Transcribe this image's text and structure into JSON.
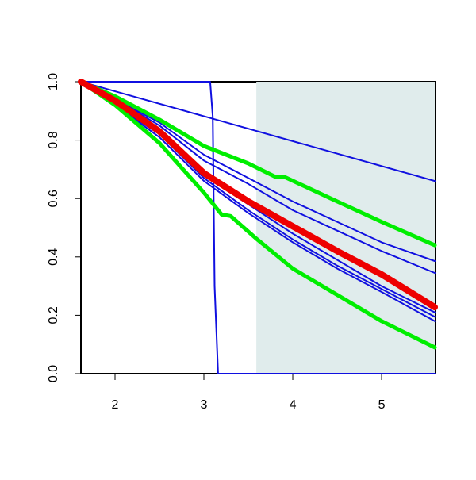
{
  "chart_data": {
    "type": "line",
    "xlim": [
      1.616,
      5.598
    ],
    "ylim": [
      0,
      1
    ],
    "xticks": [
      2,
      3,
      4,
      5
    ],
    "yticks": [
      {
        "value": 0,
        "label": "0.0"
      },
      0.2,
      0.4,
      0.6,
      0.8,
      {
        "value": 1,
        "label": "1.0"
      }
    ],
    "shaded_region": {
      "x": [
        3.59,
        5.598
      ],
      "color": "#e0ecec"
    },
    "series": [
      {
        "color": "#1010e0",
        "linewidth": 2,
        "x": [
          1.616,
          5.598
        ],
        "values": [
          1.0,
          0.66
        ]
      },
      {
        "color": "#1010e0",
        "linewidth": 2,
        "x": [
          1.616,
          3.07,
          3.1,
          3.12,
          3.16,
          5.598
        ],
        "values": [
          1.0,
          1.0,
          0.88,
          0.3,
          0,
          0
        ]
      },
      {
        "color": "#1010e0",
        "linewidth": 2,
        "x": [
          1.616,
          2,
          2.5,
          3,
          3.5,
          4,
          4.5,
          5,
          5.598
        ],
        "values": [
          1.0,
          0.94,
          0.86,
          0.75,
          0.67,
          0.59,
          0.52,
          0.45,
          0.386
        ]
      },
      {
        "color": "#1010e0",
        "linewidth": 2,
        "x": [
          1.616,
          2,
          2.5,
          3,
          3.5,
          4,
          4.5,
          5,
          5.598
        ],
        "values": [
          1.0,
          0.94,
          0.85,
          0.73,
          0.65,
          0.56,
          0.49,
          0.42,
          0.345
        ]
      },
      {
        "color": "#1010e0",
        "linewidth": 2,
        "x": [
          1.616,
          2,
          2.5,
          3,
          3.5,
          4,
          4.5,
          5,
          5.598
        ],
        "values": [
          1.0,
          0.93,
          0.83,
          0.68,
          0.58,
          0.48,
          0.39,
          0.3,
          0.21
        ]
      },
      {
        "color": "#1010e0",
        "linewidth": 2,
        "x": [
          1.616,
          2,
          2.5,
          3,
          3.5,
          4,
          4.5,
          5,
          5.598
        ],
        "values": [
          1.0,
          0.92,
          0.82,
          0.67,
          0.56,
          0.46,
          0.37,
          0.29,
          0.195
        ]
      },
      {
        "color": "#1010e0",
        "linewidth": 2,
        "x": [
          1.616,
          2,
          2.5,
          3,
          3.5,
          4,
          4.5,
          5,
          5.598
        ],
        "values": [
          1.0,
          0.92,
          0.81,
          0.66,
          0.55,
          0.45,
          0.36,
          0.28,
          0.18
        ]
      },
      {
        "color": "#00ee00",
        "linewidth": 5,
        "x": [
          1.616,
          2,
          2.5,
          3,
          3.5,
          3.8,
          3.9,
          4.5,
          5,
          5.598
        ],
        "values": [
          1.0,
          0.95,
          0.87,
          0.78,
          0.72,
          0.675,
          0.675,
          0.59,
          0.52,
          0.44
        ]
      },
      {
        "color": "#00ee00",
        "linewidth": 5,
        "x": [
          1.616,
          2,
          2.5,
          3,
          3.2,
          3.3,
          3.6,
          4,
          4.5,
          5,
          5.598
        ],
        "values": [
          1.0,
          0.92,
          0.79,
          0.62,
          0.545,
          0.54,
          0.46,
          0.36,
          0.27,
          0.18,
          0.09
        ]
      },
      {
        "color": "#ee0000",
        "linewidth": 8,
        "x": [
          1.616,
          2,
          2.5,
          3,
          3.5,
          4,
          4.5,
          5,
          5.598
        ],
        "values": [
          1.0,
          0.935,
          0.83,
          0.687,
          0.59,
          0.505,
          0.42,
          0.34,
          0.228
        ]
      }
    ]
  }
}
